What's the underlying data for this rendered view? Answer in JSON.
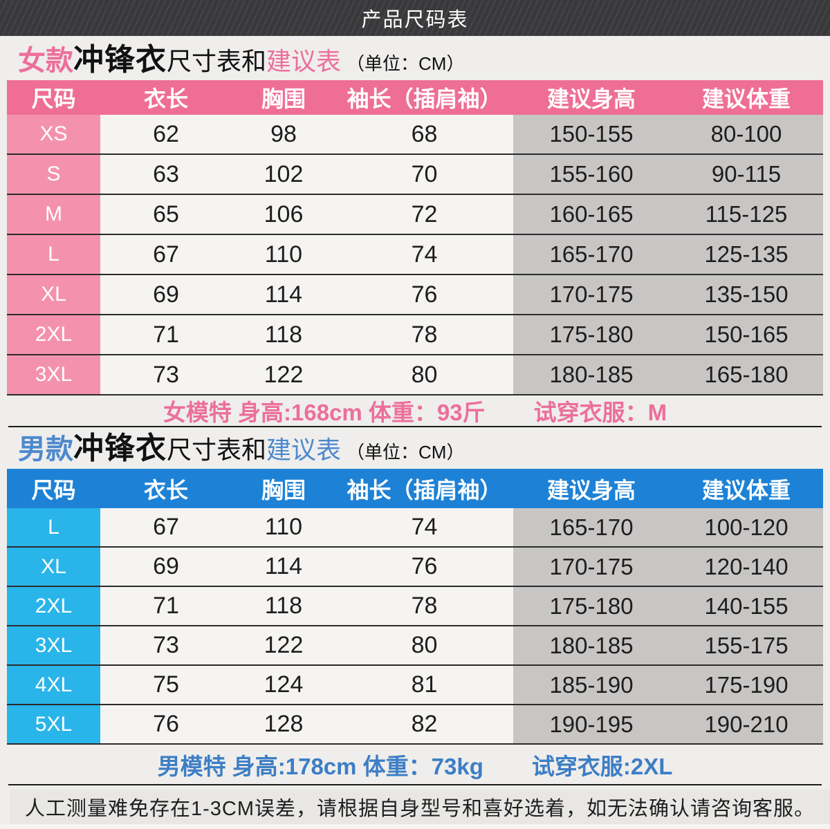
{
  "header": {
    "title": "产品尺码表"
  },
  "colors": {
    "pink_header": "#ee6e96",
    "pink_light": "#f492ae",
    "pink_text": "#ec6f9a",
    "blue_header": "#1d82d6",
    "blue_light": "#29b5e9",
    "blue_title": "#4d89cd",
    "blue_text": "#3d7ec5",
    "gray_cell": "#c8c6c5"
  },
  "women": {
    "title": {
      "prefix": "女款",
      "product": "冲锋衣",
      "mid": "尺寸表和",
      "highlight": "建议表",
      "unit": "（单位：CM）"
    },
    "table": {
      "columns": [
        "尺码",
        "衣长",
        "胸围",
        "袖长（插肩袖）",
        "建议身高",
        "建议体重"
      ],
      "rows": [
        {
          "size": "XS",
          "values": [
            "62",
            "98",
            "68",
            "150-155",
            "80-100"
          ]
        },
        {
          "size": "S",
          "values": [
            "63",
            "102",
            "70",
            "155-160",
            "90-115"
          ]
        },
        {
          "size": "M",
          "values": [
            "65",
            "106",
            "72",
            "160-165",
            "115-125"
          ]
        },
        {
          "size": "L",
          "values": [
            "67",
            "110",
            "74",
            "165-170",
            "125-135"
          ]
        },
        {
          "size": "XL",
          "values": [
            "69",
            "114",
            "76",
            "170-175",
            "135-150"
          ]
        },
        {
          "size": "2XL",
          "values": [
            "71",
            "118",
            "78",
            "175-180",
            "150-165"
          ]
        },
        {
          "size": "3XL",
          "values": [
            "73",
            "122",
            "80",
            "180-185",
            "165-180"
          ]
        }
      ]
    },
    "model_note": {
      "info": "女模特 身高:168cm 体重：93斤",
      "try_on": "试穿衣服：M"
    }
  },
  "men": {
    "title": {
      "prefix": "男款",
      "product": "冲锋衣",
      "mid": "尺寸表和",
      "highlight": "建议表",
      "unit": "（单位：CM）"
    },
    "table": {
      "columns": [
        "尺码",
        "衣长",
        "胸围",
        "袖长（插肩袖）",
        "建议身高",
        "建议体重"
      ],
      "rows": [
        {
          "size": "L",
          "values": [
            "67",
            "110",
            "74",
            "165-170",
            "100-120"
          ]
        },
        {
          "size": "XL",
          "values": [
            "69",
            "114",
            "76",
            "170-175",
            "120-140"
          ]
        },
        {
          "size": "2XL",
          "values": [
            "71",
            "118",
            "78",
            "175-180",
            "140-155"
          ]
        },
        {
          "size": "3XL",
          "values": [
            "73",
            "122",
            "80",
            "180-185",
            "155-175"
          ]
        },
        {
          "size": "4XL",
          "values": [
            "75",
            "124",
            "81",
            "185-190",
            "175-190"
          ]
        },
        {
          "size": "5XL",
          "values": [
            "76",
            "128",
            "82",
            "190-195",
            "190-210"
          ]
        }
      ]
    },
    "model_note": {
      "info": "男模特 身高:178cm 体重：73kg",
      "try_on": "试穿衣服:2XL"
    }
  },
  "footer": {
    "note": "人工测量难免存在1-3CM误差，请根据自身型号和喜好选着，如无法确认请咨询客服。"
  }
}
